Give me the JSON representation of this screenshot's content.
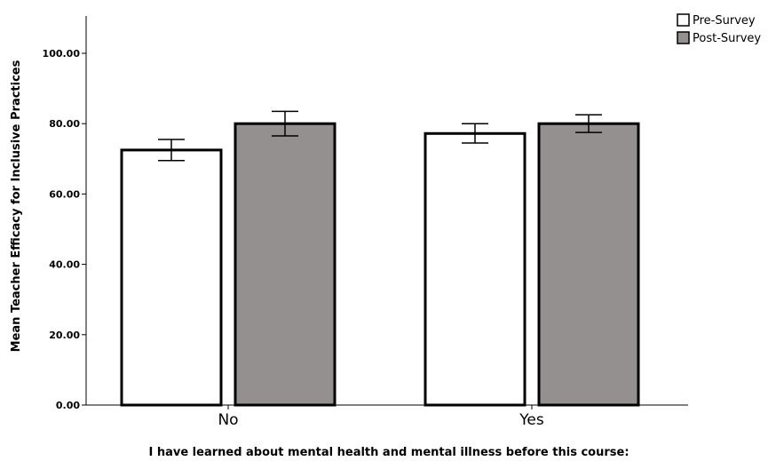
{
  "chart_data": {
    "type": "bar",
    "categories": [
      "No",
      "Yes"
    ],
    "series": [
      {
        "name": "Pre-Survey",
        "color": "#ffffff",
        "values": [
          72.5,
          77.2
        ],
        "error_low": [
          69.5,
          74.5
        ],
        "error_high": [
          75.5,
          80.0
        ]
      },
      {
        "name": "Post-Survey",
        "color": "#959090",
        "values": [
          80.0,
          80.0
        ],
        "error_low": [
          76.5,
          77.5
        ],
        "error_high": [
          83.5,
          82.5
        ]
      }
    ],
    "xlabel": "I have learned about mental health and mental illness before this course:",
    "ylabel": "Mean Teacher Efficacy for Inclusive Practices",
    "ylim": [
      0,
      110
    ],
    "yticks": [
      0,
      20,
      40,
      60,
      80,
      100
    ],
    "ytick_labels": [
      "0.00",
      "20.00",
      "40.00",
      "60.00",
      "80.00",
      "100.00"
    ],
    "grid": false,
    "legend_position": "top-right"
  }
}
